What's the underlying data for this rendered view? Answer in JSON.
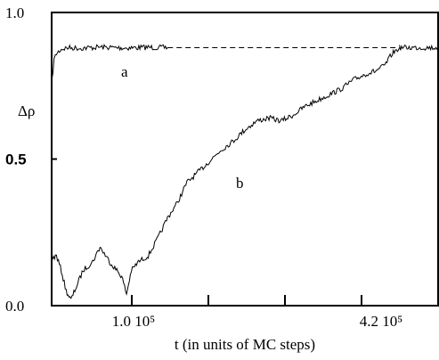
{
  "chart_data": {
    "type": "line",
    "xlabel": "t (in units of MC steps)",
    "ylabel": "Δρ",
    "ylim": [
      0.0,
      1.0
    ],
    "grid": false,
    "y_ticks": [
      {
        "value": 0.0,
        "label": "0.0"
      },
      {
        "value": 0.5,
        "label": "0.5"
      },
      {
        "value": 1.0,
        "label": "1.0"
      }
    ],
    "x_ticks": [
      {
        "label": "1.0 10⁵"
      },
      {
        "label": "4.2 10⁵"
      }
    ],
    "reference_line": {
      "y": 0.88,
      "style": "dashed"
    },
    "series": [
      {
        "name": "a",
        "points": [
          [
            0.0,
            0.76
          ],
          [
            0.01,
            0.84
          ],
          [
            0.02,
            0.86
          ],
          [
            0.04,
            0.875
          ],
          [
            0.07,
            0.88
          ],
          [
            0.12,
            0.878
          ],
          [
            0.2,
            0.882
          ],
          [
            0.3,
            0.879
          ],
          [
            0.4,
            0.881
          ],
          [
            0.48,
            0.88
          ]
        ]
      },
      {
        "name": "b",
        "points": [
          [
            0.0,
            0.16
          ],
          [
            0.02,
            0.17
          ],
          [
            0.04,
            0.12
          ],
          [
            0.06,
            0.05
          ],
          [
            0.08,
            0.02
          ],
          [
            0.1,
            0.06
          ],
          [
            0.13,
            0.12
          ],
          [
            0.17,
            0.15
          ],
          [
            0.2,
            0.2
          ],
          [
            0.24,
            0.15
          ],
          [
            0.27,
            0.12
          ],
          [
            0.29,
            0.1
          ],
          [
            0.31,
            0.04
          ],
          [
            0.33,
            0.12
          ],
          [
            0.36,
            0.15
          ],
          [
            0.4,
            0.17
          ],
          [
            0.44,
            0.23
          ],
          [
            0.48,
            0.3
          ],
          [
            0.52,
            0.35
          ],
          [
            0.56,
            0.42
          ],
          [
            0.6,
            0.45
          ],
          [
            0.65,
            0.49
          ],
          [
            0.7,
            0.53
          ],
          [
            0.75,
            0.56
          ],
          [
            0.8,
            0.6
          ],
          [
            0.85,
            0.63
          ],
          [
            0.9,
            0.64
          ],
          [
            0.95,
            0.63
          ],
          [
            1.0,
            0.65
          ],
          [
            1.05,
            0.68
          ],
          [
            1.1,
            0.7
          ],
          [
            1.15,
            0.72
          ],
          [
            1.2,
            0.74
          ],
          [
            1.25,
            0.77
          ],
          [
            1.3,
            0.79
          ],
          [
            1.34,
            0.8
          ],
          [
            1.38,
            0.82
          ],
          [
            1.41,
            0.86
          ],
          [
            1.44,
            0.88
          ]
        ]
      },
      {
        "name": "",
        "points": [
          [
            1.44,
            0.88
          ],
          [
            1.6,
            0.88
          ]
        ]
      }
    ]
  }
}
